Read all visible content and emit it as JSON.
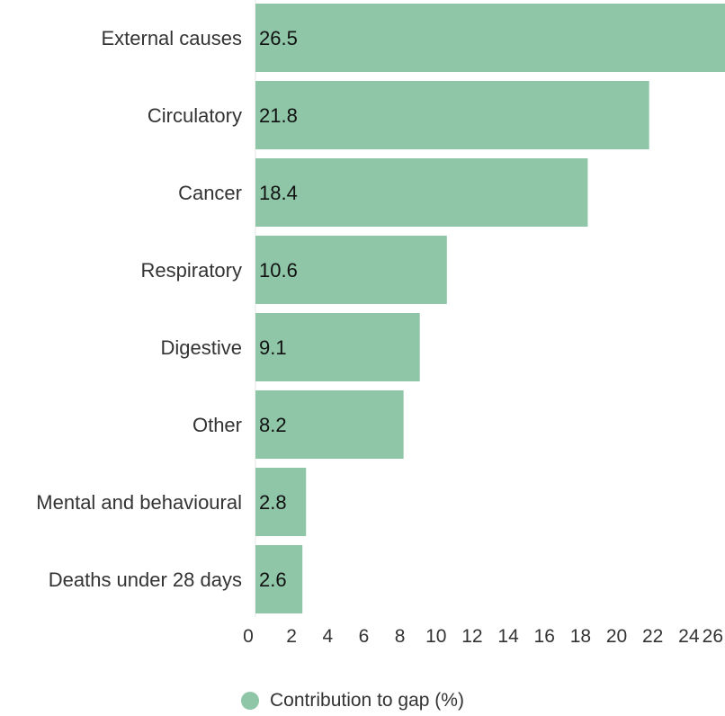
{
  "chart_data": {
    "type": "bar",
    "orientation": "horizontal",
    "categories": [
      "External causes",
      "Circulatory",
      "Cancer",
      "Respiratory",
      "Digestive",
      "Other",
      "Mental and behavioural",
      "Deaths under 28 days"
    ],
    "series": [
      {
        "name": "Contribution to gap (%)",
        "values": [
          26.5,
          21.8,
          18.4,
          10.6,
          9.1,
          8.2,
          2.8,
          2.6
        ],
        "color": "#8fc6a8"
      }
    ],
    "data_labels": [
      "26.5",
      "21.8",
      "18.4",
      "10.6",
      "9.1",
      "8.2",
      "2.8",
      "2.6"
    ],
    "xlim": [
      0,
      26
    ],
    "x_ticks": [
      0,
      2,
      4,
      6,
      8,
      10,
      12,
      14,
      16,
      18,
      20,
      22,
      24,
      26
    ],
    "grid": false,
    "legend_position": "bottom"
  }
}
